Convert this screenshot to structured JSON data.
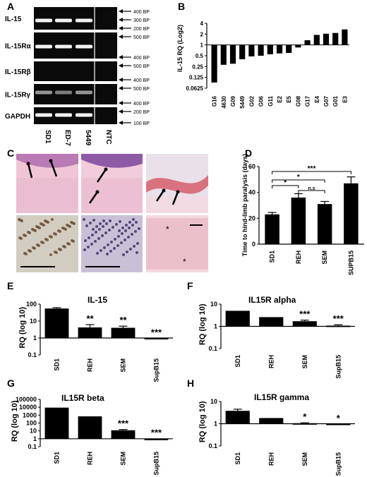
{
  "figure": {
    "panel_labels": [
      "A",
      "B",
      "C",
      "D",
      "E",
      "F",
      "G",
      "H"
    ]
  },
  "gel": {
    "rows": [
      "IL-15",
      "IL-15Rα",
      "IL-15Rβ",
      "IL-15Rγ",
      "GAPDH"
    ],
    "lanes": [
      "SD1",
      "ED-7",
      "5449",
      "NTC"
    ],
    "markers": [
      [
        "400 BP",
        "300 BP",
        "200 BP"
      ],
      [
        "500 BP",
        "400 BP"
      ],
      [
        "500 BP",
        "400 BP"
      ],
      [
        "500 BP",
        "400 BP"
      ],
      [
        "200 BP",
        "100 BP"
      ]
    ]
  },
  "histology": {
    "marker": "*"
  },
  "chart_data": [
    {
      "panel": "B",
      "type": "bar",
      "ylabel": "IL-15 RQ (Log2)",
      "y_scale": "log2",
      "y_ticks": [
        "4",
        "2",
        "1",
        "0.5",
        "0.25",
        "0.125",
        "0.0625"
      ],
      "ylim": [
        0.0625,
        4
      ],
      "categories": [
        "G16",
        "4630",
        "G09",
        "5449",
        "G02",
        "G06",
        "G11",
        "E2",
        "E5",
        "G08",
        "G17",
        "E4",
        "G07",
        "G01",
        "E3"
      ],
      "values": [
        0.09,
        0.28,
        0.3,
        0.4,
        0.48,
        0.5,
        0.55,
        0.58,
        0.6,
        0.85,
        1.35,
        1.9,
        2.05,
        2.15,
        2.7
      ]
    },
    {
      "panel": "D",
      "type": "bar",
      "ylabel": "Time to hind-limb paralysis (days)",
      "ylim": [
        0,
        60
      ],
      "y_ticks": [
        "0",
        "20",
        "40",
        "60"
      ],
      "categories": [
        "SD1",
        "REH",
        "SEM",
        "SUPB15"
      ],
      "values": [
        23,
        36,
        31,
        47
      ],
      "errors": [
        1.5,
        3,
        2,
        5
      ],
      "significance": [
        {
          "from": 0,
          "to": 3,
          "label": "***"
        },
        {
          "from": 0,
          "to": 2,
          "label": "*"
        },
        {
          "from": 0,
          "to": 1,
          "label": "*"
        },
        {
          "from": 1,
          "to": 2,
          "label": "n.s"
        }
      ]
    },
    {
      "panel": "E",
      "type": "bar",
      "title": "IL-15",
      "ylabel": "RQ (log 10)",
      "y_scale": "log10",
      "y_ticks": [
        "100",
        "10",
        "1",
        "0.1"
      ],
      "ylim": [
        0.1,
        100
      ],
      "categories": [
        "SD1",
        "REH",
        "SEM",
        "SupB15"
      ],
      "values": [
        55,
        4.2,
        4.0,
        0.85
      ],
      "errors_top": [
        62,
        6.2,
        5.0,
        0.95
      ],
      "stars": [
        "",
        "**",
        "**",
        "***"
      ]
    },
    {
      "panel": "F",
      "type": "bar",
      "title": "IL15R alpha",
      "ylabel": "RQ (log 10)",
      "y_scale": "log10",
      "y_ticks": [
        "10",
        "1",
        "0.1"
      ],
      "ylim": [
        0.1,
        10
      ],
      "categories": [
        "SD1",
        "REH",
        "SEM",
        "SupB15"
      ],
      "values": [
        5.0,
        2.6,
        1.7,
        1.08
      ],
      "errors_top": [
        5.0,
        2.6,
        1.9,
        1.18
      ],
      "stars": [
        "",
        "",
        "***",
        "***"
      ]
    },
    {
      "panel": "G",
      "type": "bar",
      "title": "IL15R beta",
      "ylabel": "RQ (log 10)",
      "y_scale": "log10",
      "y_ticks": [
        "100000",
        "10000",
        "1000",
        "100",
        "10",
        "1",
        "0.1"
      ],
      "ylim": [
        0.1,
        100000
      ],
      "categories": [
        "SD1",
        "REH",
        "SEM",
        "SupB15"
      ],
      "values": [
        9000,
        700,
        12,
        1.0
      ],
      "errors_top": [
        9000,
        700,
        15,
        1.05
      ],
      "stars": [
        "",
        "",
        "***",
        "***"
      ]
    },
    {
      "panel": "H",
      "type": "bar",
      "title": "IL15R gamma",
      "ylabel": "RQ (log 10)",
      "y_scale": "log10",
      "y_ticks": [
        "10",
        "1",
        "0.1"
      ],
      "ylim": [
        0.1,
        10
      ],
      "categories": [
        "SD1",
        "REH",
        "SEM",
        "SupB15"
      ],
      "values": [
        3.8,
        1.8,
        1.05,
        0.88
      ],
      "errors_top": [
        4.5,
        1.8,
        1.1,
        0.95
      ],
      "stars": [
        "",
        "",
        "*",
        "*"
      ]
    }
  ]
}
